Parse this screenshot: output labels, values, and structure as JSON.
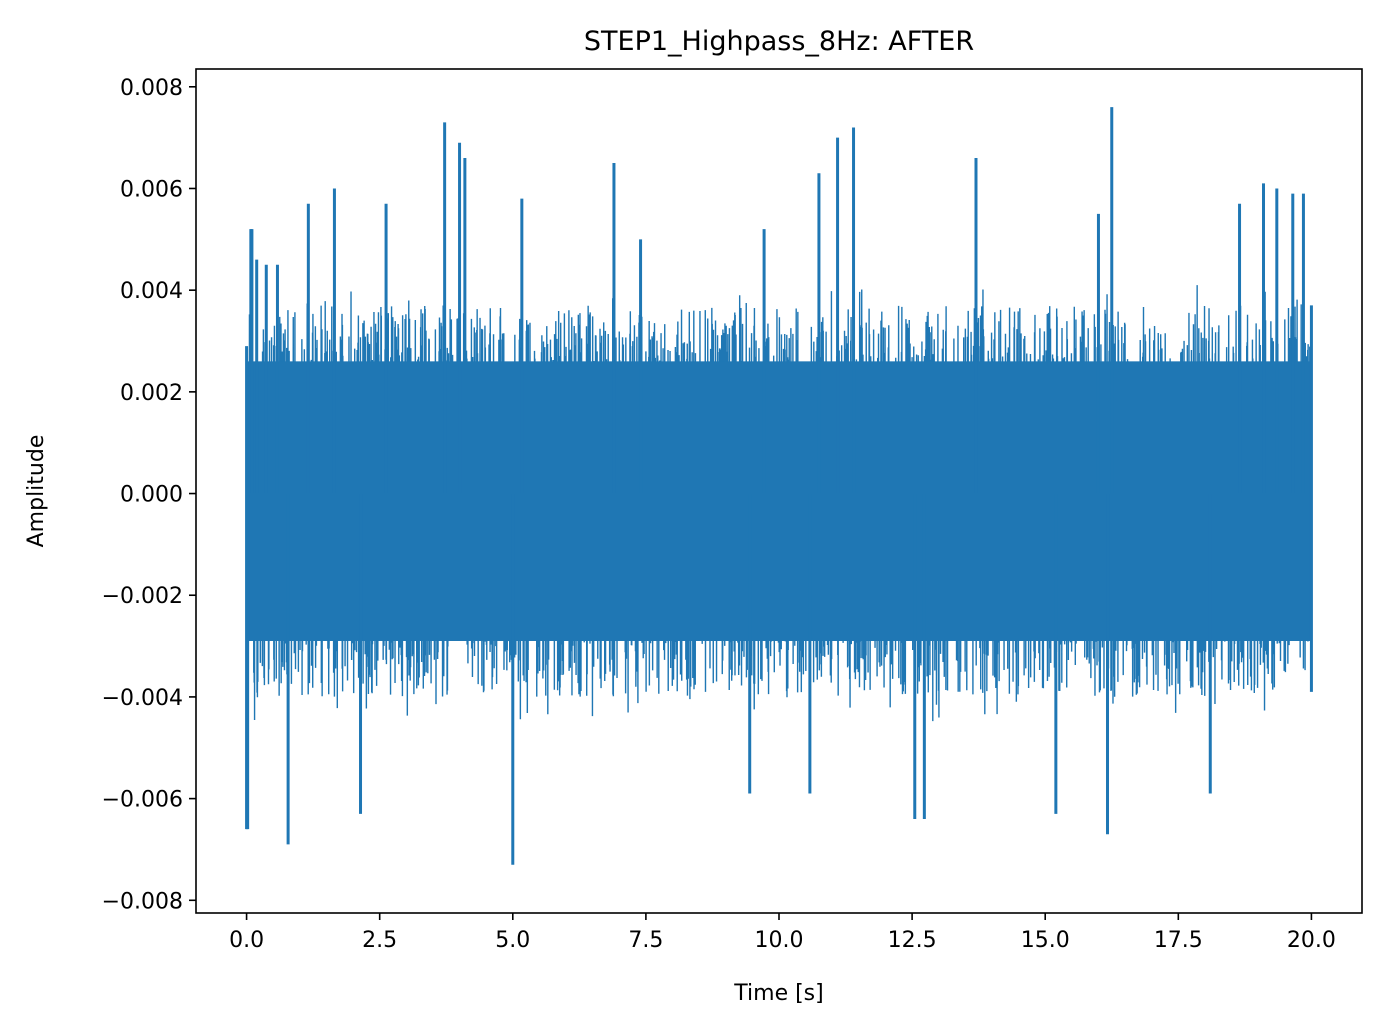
{
  "chart_data": {
    "type": "line",
    "title": "STEP1_Highpass_8Hz: AFTER",
    "xlabel": "Time [s]",
    "ylabel": "Amplitude",
    "xlim": [
      -0.95,
      20.95
    ],
    "ylim": [
      -0.00825,
      0.00835
    ],
    "x_ticks": [
      0.0,
      2.5,
      5.0,
      7.5,
      10.0,
      12.5,
      15.0,
      17.5,
      20.0
    ],
    "x_tick_labels": [
      "0.0",
      "2.5",
      "5.0",
      "7.5",
      "10.0",
      "12.5",
      "15.0",
      "17.5",
      "20.0"
    ],
    "y_ticks": [
      -0.008,
      -0.006,
      -0.004,
      -0.002,
      0.0,
      0.002,
      0.004,
      0.006,
      0.008
    ],
    "y_tick_labels": [
      "−0.008",
      "−0.006",
      "−0.004",
      "−0.002",
      "0.000",
      "0.002",
      "0.004",
      "0.006",
      "0.008"
    ],
    "grid": false,
    "series": [
      {
        "color": "#1f77b4",
        "x_start": 0.0,
        "x_end": 20.0,
        "noise_envelope": {
          "upper": 0.0037,
          "lower": -0.004
        },
        "x": [
          0.02,
          0.08,
          0.1,
          0.19,
          0.37,
          0.58,
          0.78,
          1.16,
          1.65,
          2.14,
          2.62,
          3.72,
          4.0,
          4.1,
          5.0,
          5.17,
          6.9,
          7.4,
          9.45,
          9.72,
          10.58,
          10.75,
          11.1,
          11.4,
          12.55,
          12.73,
          13.7,
          15.2,
          16.0,
          16.17,
          16.25,
          18.1,
          18.65,
          19.1,
          19.35,
          19.65,
          19.85
        ],
        "y": [
          -0.0066,
          0.0052,
          0.0052,
          0.0046,
          0.0045,
          0.0045,
          -0.0069,
          0.0057,
          0.006,
          -0.0063,
          0.0057,
          0.0073,
          0.0069,
          0.0066,
          -0.0073,
          0.0058,
          0.0065,
          0.005,
          -0.0059,
          0.0052,
          -0.0059,
          0.0063,
          0.007,
          0.0072,
          -0.0064,
          -0.0064,
          0.0066,
          -0.0063,
          0.0055,
          -0.0067,
          0.0076,
          -0.0059,
          0.0057,
          0.0061,
          0.006,
          0.0059,
          0.0059
        ]
      }
    ]
  }
}
